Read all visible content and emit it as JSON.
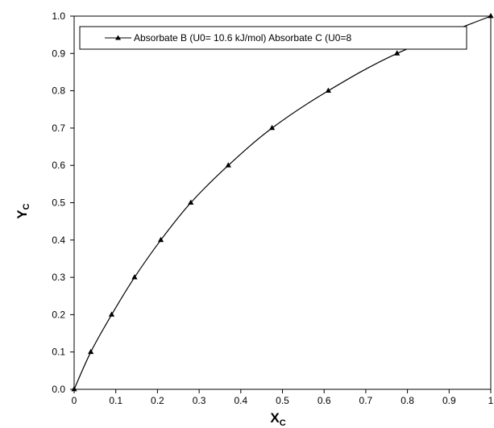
{
  "chart_data": {
    "type": "line",
    "title": "",
    "xlabel": {
      "main": "X",
      "sub": "C"
    },
    "ylabel": {
      "main": "Y",
      "sub": "C"
    },
    "xlim": [
      0,
      1
    ],
    "ylim": [
      0,
      1
    ],
    "x_ticks": [
      "0",
      "0.1",
      "0.2",
      "0.3",
      "0.4",
      "0.5",
      "0.6",
      "0.7",
      "0.8",
      "0.9",
      "1"
    ],
    "y_ticks": [
      "0.0",
      "0.1",
      "0.2",
      "0.3",
      "0.4",
      "0.5",
      "0.6",
      "0.7",
      "0.8",
      "0.9",
      "1.0"
    ],
    "grid": false,
    "legend_position": "top",
    "series": [
      {
        "name": "Absorbate B (U0= 10.6 kJ/mol) Absorbate C (U0=8",
        "color": "#000000",
        "marker": "triangle",
        "x": [
          0,
          0.04,
          0.09,
          0.145,
          0.208,
          0.28,
          0.37,
          0.475,
          0.61,
          0.775,
          1.0
        ],
        "y": [
          0,
          0.1,
          0.2,
          0.3,
          0.4,
          0.5,
          0.6,
          0.7,
          0.8,
          0.9,
          1.0
        ]
      }
    ]
  }
}
